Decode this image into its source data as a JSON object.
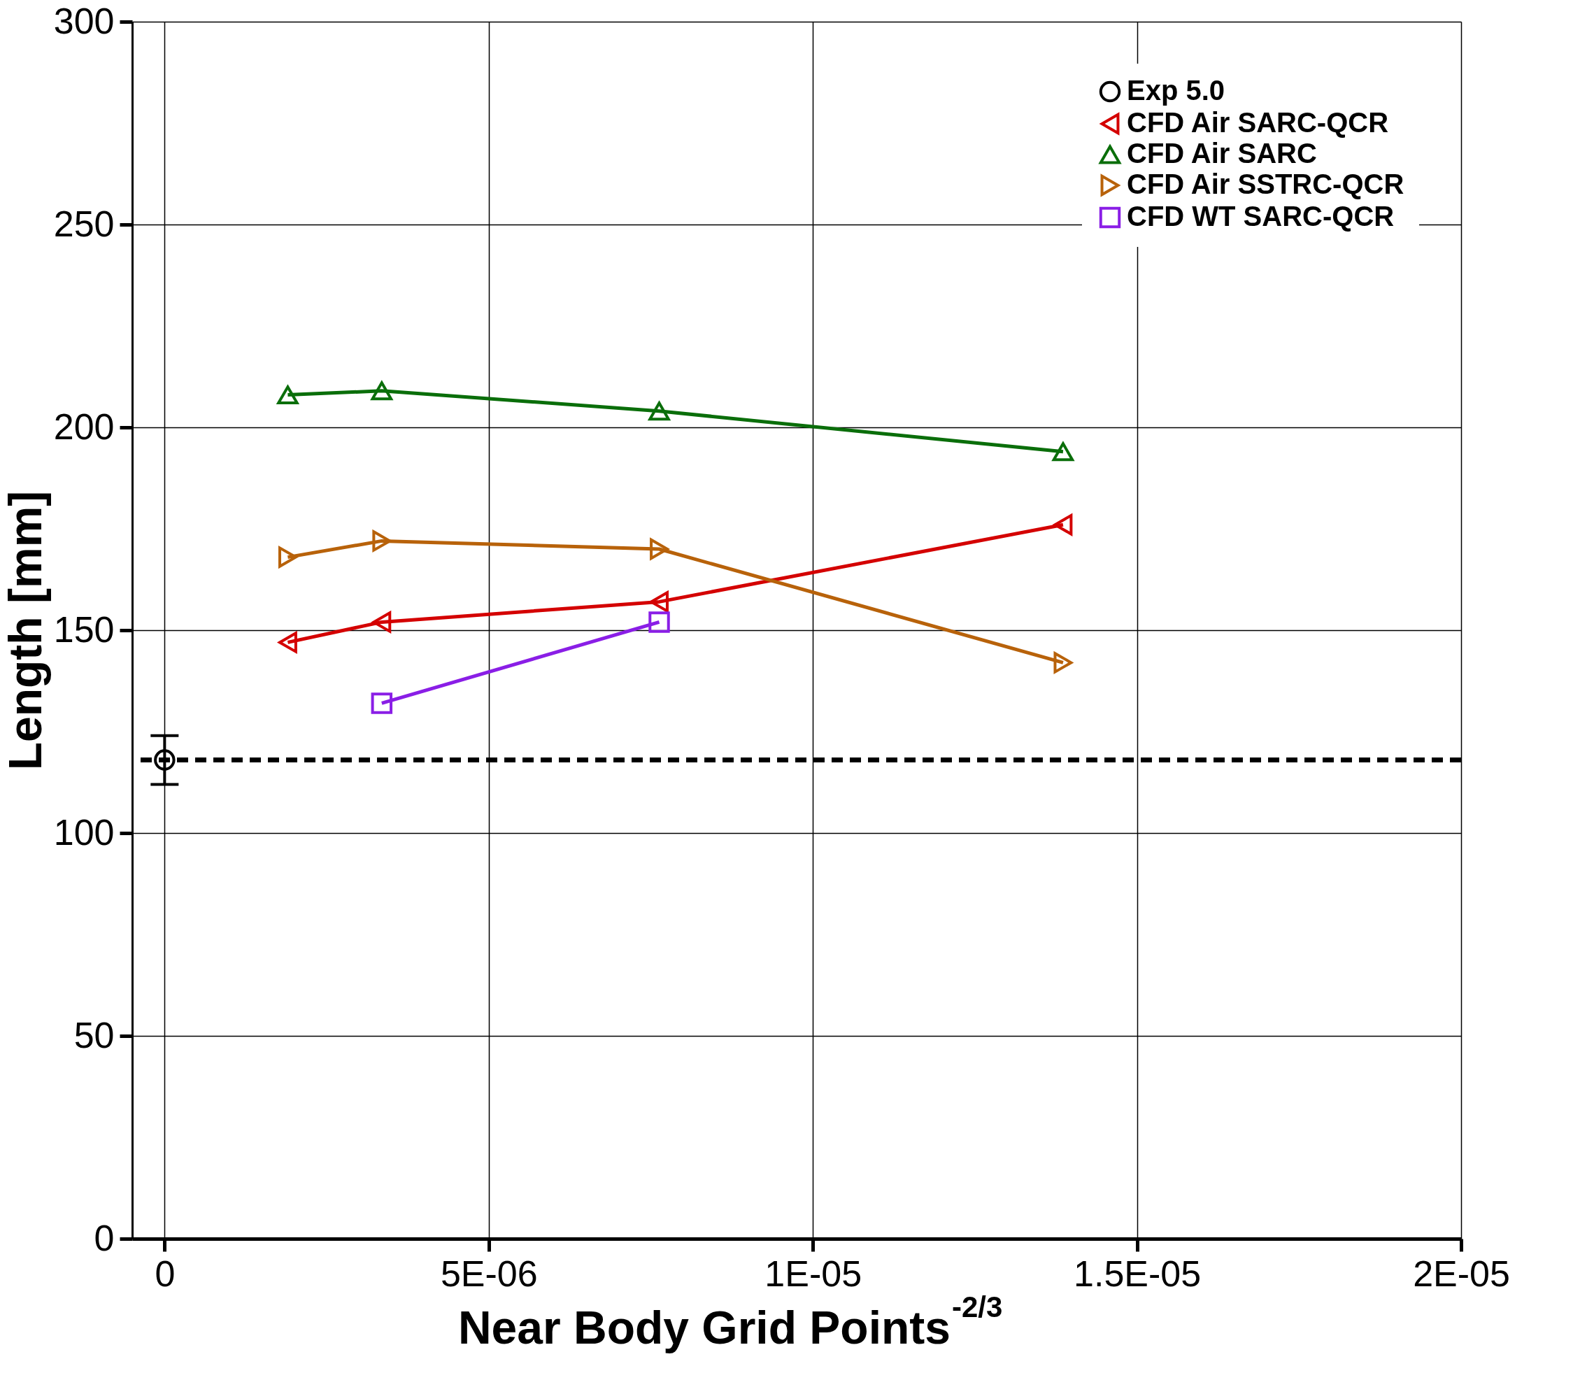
{
  "chart_data": {
    "type": "line",
    "xlabel": "Near Body Grid Points$^{-2/3}$",
    "ylabel": "Length [mm]",
    "xlim": [
      -5e-07,
      2e-05
    ],
    "xticks": [
      {
        "value": 0,
        "label": "0"
      },
      {
        "value": 5e-06,
        "label": "5E-06"
      },
      {
        "value": 1e-05,
        "label": "1E-05"
      },
      {
        "value": 1.5e-05,
        "label": "1.5E-05"
      },
      {
        "value": 2e-05,
        "label": "2E-05"
      }
    ],
    "ylim": [
      0,
      300
    ],
    "yticks": [
      0,
      50,
      100,
      150,
      200,
      250,
      300
    ],
    "grid": true,
    "legend": "top right",
    "line_style": "solid",
    "series": [
      {
        "name": "Exp 5.0",
        "color": "#000000",
        "marker": "circle",
        "x": [
          0
        ],
        "values": [
          118
        ],
        "errors": [
          [
            112,
            124
          ]
        ]
      },
      {
        "name": "CFD Air SARC-QCR",
        "color": "#d40000",
        "marker": "triangle-left",
        "x": [
          1.9e-06,
          3.35e-06,
          7.63e-06,
          1.386e-05
        ],
        "values": [
          147,
          152,
          157,
          176
        ]
      },
      {
        "name": "CFD Air SARC",
        "color": "#0a6e0a",
        "marker": "triangle-up",
        "x": [
          1.9e-06,
          3.35e-06,
          7.63e-06,
          1.386e-05
        ],
        "values": [
          208,
          209,
          204,
          194
        ]
      },
      {
        "name": "CFD Air SSTRC-QCR",
        "color": "#b8620a",
        "marker": "triangle-right",
        "x": [
          1.9e-06,
          3.35e-06,
          7.63e-06,
          1.386e-05
        ],
        "values": [
          168,
          172,
          170,
          142
        ]
      },
      {
        "name": "CFD WT SARC-QCR",
        "color": "#8a1ee6",
        "marker": "square",
        "x": [
          3.35e-06,
          7.63e-06
        ],
        "values": [
          132,
          152
        ]
      }
    ],
    "ref_lines": [
      {
        "axis": "y",
        "value": 118,
        "color": "#000000",
        "line_style": "dashed"
      }
    ]
  }
}
